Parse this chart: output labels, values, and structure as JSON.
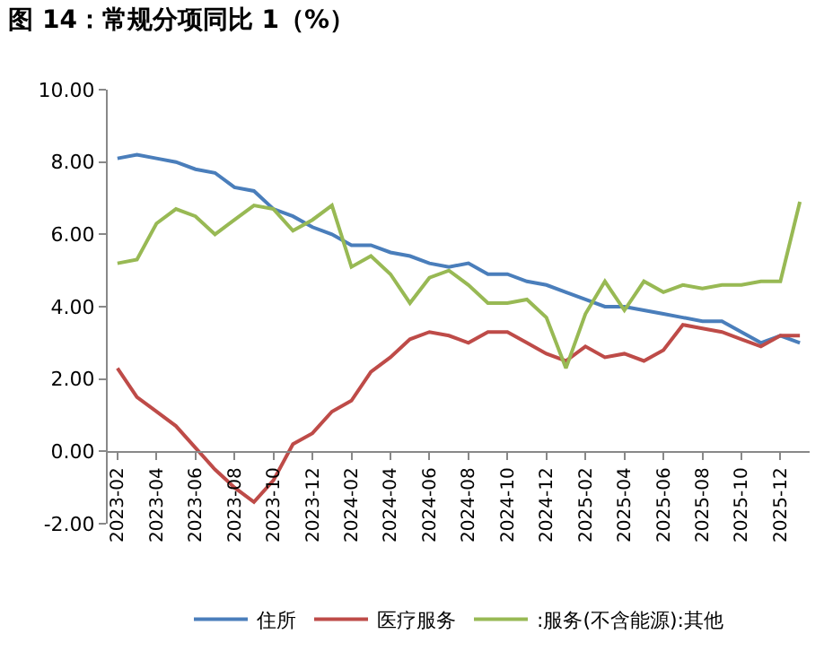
{
  "chart_data": {
    "type": "line",
    "title": "图 14：常规分项同比 1（%）",
    "categories": [
      "2023-02",
      null,
      "2023-04",
      null,
      "2023-06",
      null,
      "2023-08",
      null,
      "2023-10",
      null,
      "2023-12",
      null,
      "2024-02",
      null,
      "2024-04",
      null,
      "2024-06",
      null,
      "2024-08",
      null,
      "2024-10",
      null,
      "2024-12",
      null,
      "2025-02",
      null,
      "2025-04",
      null,
      "2025-06",
      null,
      "2025-08",
      null,
      "2025-10",
      null,
      "2025-12",
      null
    ],
    "series": [
      {
        "name": "住所",
        "color": "#4a7ebb",
        "values": [
          8.1,
          8.2,
          8.1,
          8.0,
          7.8,
          7.7,
          7.3,
          7.2,
          6.7,
          6.5,
          6.2,
          6.0,
          5.7,
          5.7,
          5.5,
          5.4,
          5.2,
          5.1,
          5.2,
          4.9,
          4.9,
          4.7,
          4.6,
          4.4,
          4.2,
          4.0,
          4.0,
          3.9,
          3.8,
          3.7,
          3.6,
          3.6,
          3.3,
          3.0,
          3.2,
          3.0
        ]
      },
      {
        "name": "医疗服务",
        "color": "#be4b48",
        "values": [
          2.3,
          1.5,
          1.1,
          0.7,
          0.1,
          -0.5,
          -1.0,
          -1.4,
          -0.8,
          0.2,
          0.5,
          1.1,
          1.4,
          2.2,
          2.6,
          3.1,
          3.3,
          3.2,
          3.0,
          3.3,
          3.3,
          3.0,
          2.7,
          2.5,
          2.9,
          2.6,
          2.7,
          2.5,
          2.8,
          3.5,
          3.4,
          3.3,
          3.1,
          2.9,
          3.2,
          3.2
        ]
      },
      {
        "name": ":服务(不含能源):其他",
        "color": "#98b954",
        "values": [
          5.2,
          5.3,
          6.3,
          6.7,
          6.5,
          6.0,
          6.4,
          6.8,
          6.7,
          6.1,
          6.4,
          6.8,
          5.1,
          5.4,
          4.9,
          4.1,
          4.8,
          5.0,
          4.6,
          4.1,
          4.1,
          4.2,
          3.7,
          2.3,
          3.8,
          4.7,
          3.9,
          4.7,
          4.4,
          4.6,
          4.5,
          4.6,
          4.6,
          4.7,
          4.7,
          6.9
        ]
      }
    ],
    "ylim": [
      -2,
      10
    ],
    "yticks": [
      {
        "value": -2,
        "label": "-2.00"
      },
      {
        "value": 0,
        "label": "0.00"
      },
      {
        "value": 2,
        "label": "2.00"
      },
      {
        "value": 4,
        "label": "4.00"
      },
      {
        "value": 6,
        "label": "6.00"
      },
      {
        "value": 8,
        "label": "8.00"
      },
      {
        "value": 10,
        "label": "10.00"
      }
    ],
    "grid": false,
    "legend": "bottom",
    "marker": "none",
    "line_style": "solid"
  }
}
